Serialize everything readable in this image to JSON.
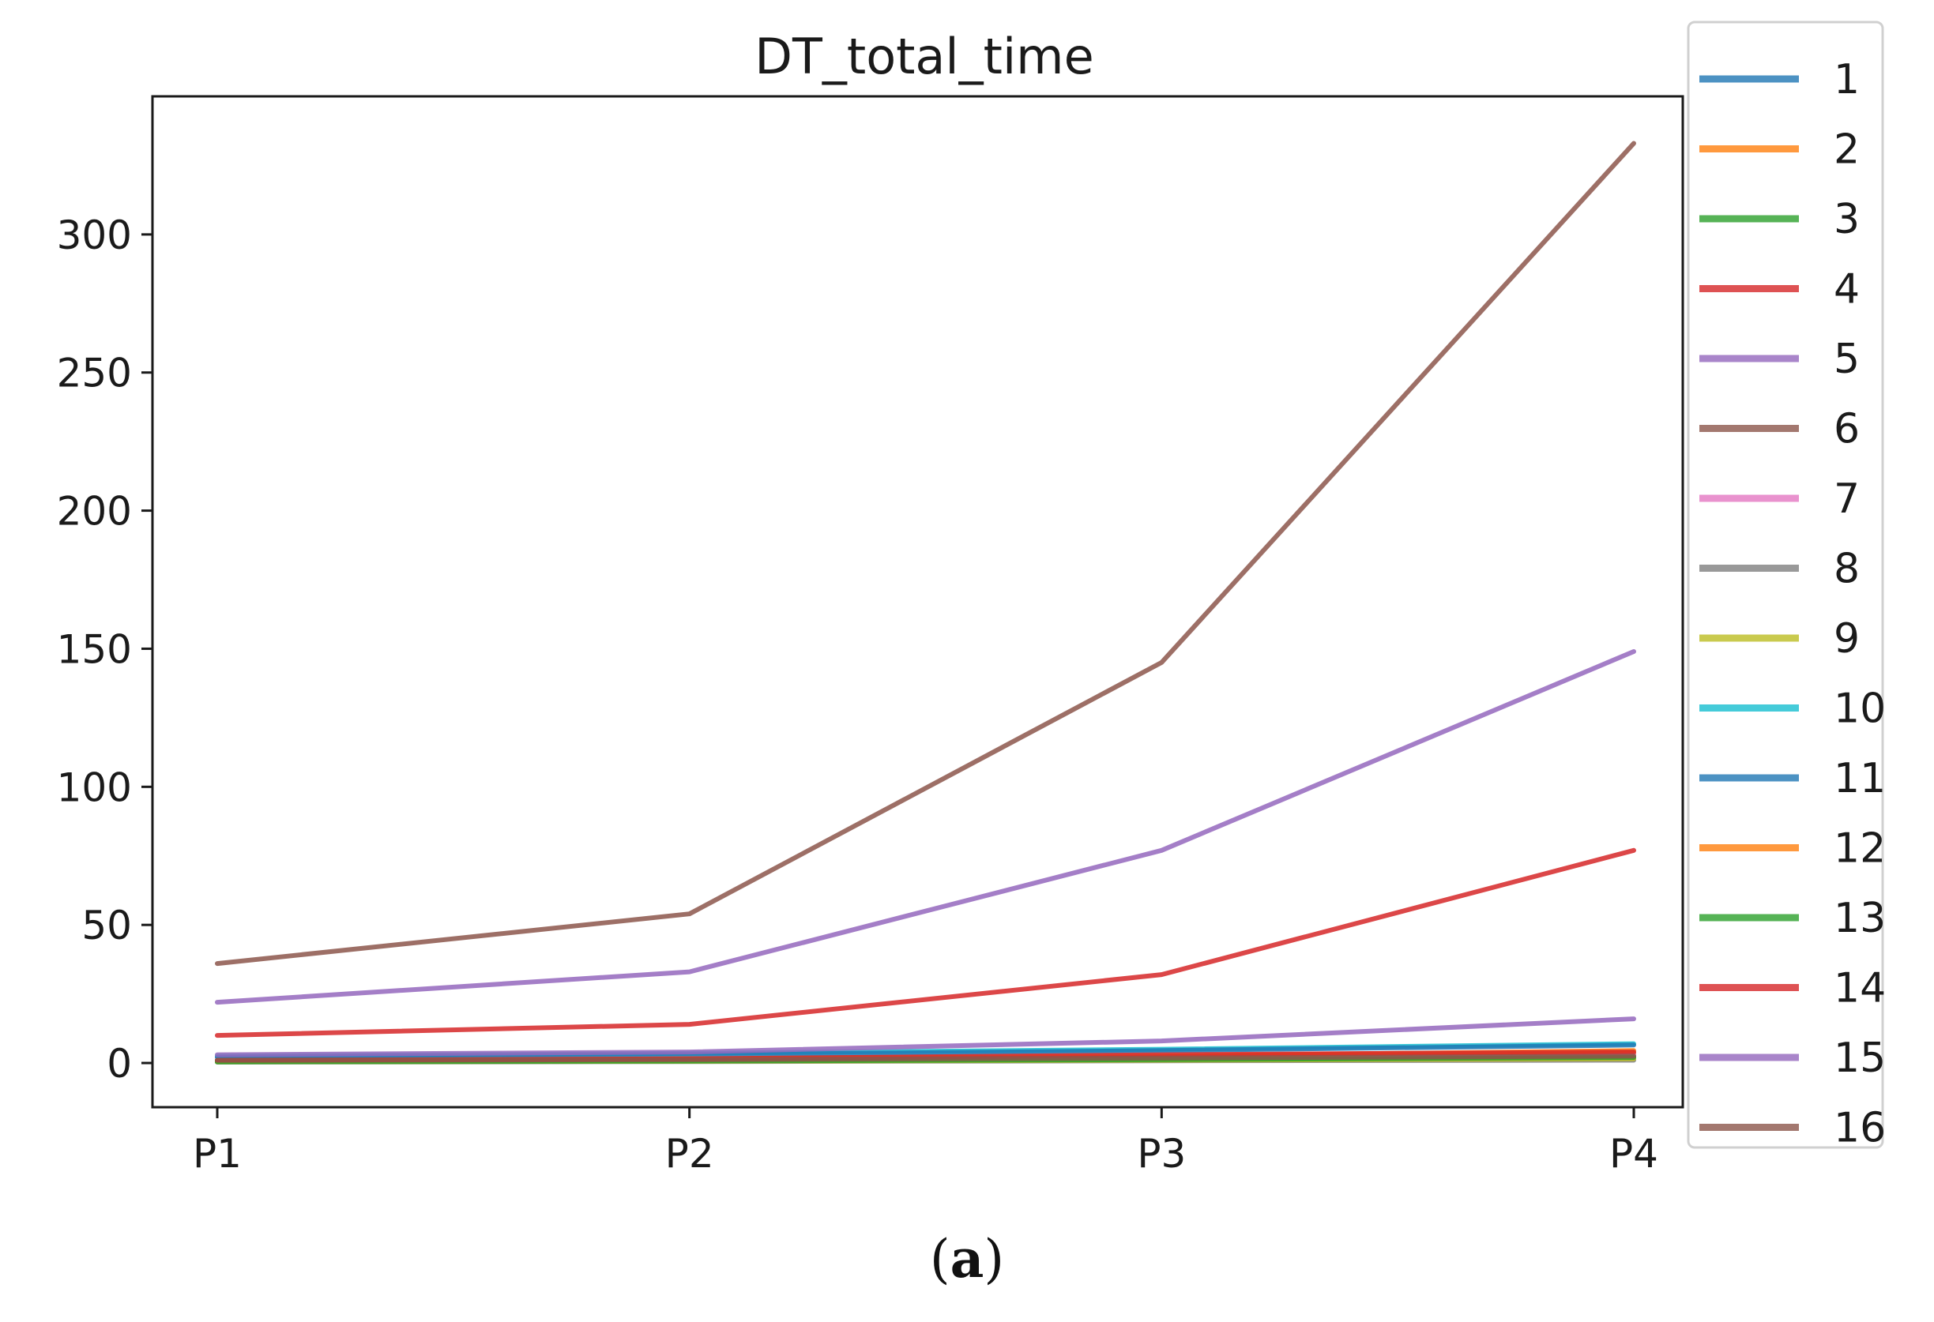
{
  "chart_data": {
    "type": "line",
    "title": "DT_total_time",
    "xlabel": "",
    "ylabel": "",
    "categories": [
      "P1",
      "P2",
      "P3",
      "P4"
    ],
    "ylim": [
      -16,
      350
    ],
    "yticks": [
      0,
      50,
      100,
      150,
      200,
      250,
      300
    ],
    "legend_position": "outside-right",
    "grid": false,
    "series": [
      {
        "name": "1",
        "color": "#1f77b4",
        "values": [
          0.5,
          0.8,
          1.5,
          2.0
        ]
      },
      {
        "name": "2",
        "color": "#ff7f0e",
        "values": [
          0.6,
          1.0,
          2.0,
          3.5
        ]
      },
      {
        "name": "3",
        "color": "#2ca02c",
        "values": [
          0.5,
          0.8,
          1.5,
          2.5
        ]
      },
      {
        "name": "4",
        "color": "#d62728",
        "values": [
          10,
          14,
          32,
          77
        ]
      },
      {
        "name": "5",
        "color": "#9467bd",
        "values": [
          22,
          33,
          77,
          149
        ]
      },
      {
        "name": "6",
        "color": "#8c564b",
        "values": [
          36,
          54,
          145,
          333
        ]
      },
      {
        "name": "7",
        "color": "#e377c2",
        "values": [
          0.8,
          1.2,
          2.0,
          3.0
        ]
      },
      {
        "name": "8",
        "color": "#7f7f7f",
        "values": [
          0.3,
          0.5,
          0.8,
          1.0
        ]
      },
      {
        "name": "9",
        "color": "#bcbd22",
        "values": [
          0.4,
          0.6,
          1.0,
          1.5
        ]
      },
      {
        "name": "10",
        "color": "#17becf",
        "values": [
          2.5,
          3.5,
          5.0,
          7.0
        ]
      },
      {
        "name": "11",
        "color": "#1f77b4",
        "values": [
          2.0,
          3.0,
          4.5,
          6.5
        ]
      },
      {
        "name": "12",
        "color": "#ff7f0e",
        "values": [
          0.8,
          1.5,
          2.5,
          4.5
        ]
      },
      {
        "name": "13",
        "color": "#2ca02c",
        "values": [
          0.4,
          0.7,
          1.2,
          2.0
        ]
      },
      {
        "name": "14",
        "color": "#d62728",
        "values": [
          1.0,
          1.5,
          3.0,
          4.0
        ]
      },
      {
        "name": "15",
        "color": "#9467bd",
        "values": [
          3.0,
          4.0,
          8.0,
          16
        ]
      },
      {
        "name": "16",
        "color": "#8c564b",
        "values": [
          1.0,
          1.2,
          1.8,
          2.5
        ]
      }
    ]
  },
  "caption": {
    "open": "(",
    "letter": "a",
    "close": ")"
  }
}
